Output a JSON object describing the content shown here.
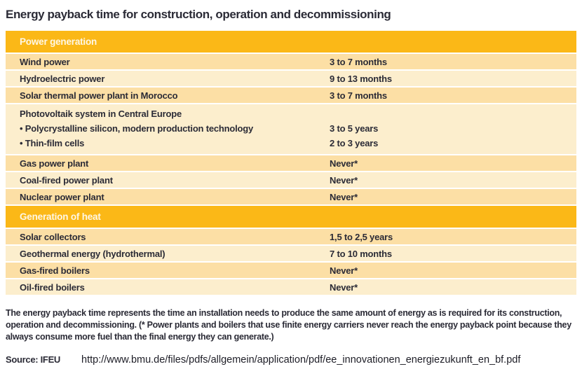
{
  "title": "Energy payback time for construction, operation and decommissioning",
  "colors": {
    "header_bg": "#FBB817",
    "row_dark": "#FCDFA5",
    "row_light": "#FCEECD",
    "separator": "#FFFBF0",
    "text_dark": "#2B2B36",
    "header_text": "#FEF7E6"
  },
  "table": {
    "sections": [
      {
        "header": "Power generation",
        "rows": [
          {
            "label": "Wind power",
            "value": "3 to 7 months"
          },
          {
            "label": "Hydroelectric power",
            "value": "9 to 13 months"
          },
          {
            "label": "Solar thermal power plant in Morocco",
            "value": "3 to 7 months"
          },
          {
            "label": "Photovoltaik system in Central Europe",
            "value": "",
            "sub": [
              {
                "label": "• Polycrystalline silicon, modern production technology",
                "value": "3 to 5 years"
              },
              {
                "label": "• Thin-film cells",
                "value": "2 to 3 years"
              }
            ]
          },
          {
            "label": "Gas power plant",
            "value": "Never*"
          },
          {
            "label": "Coal-fired power plant",
            "value": "Never*"
          },
          {
            "label": "Nuclear power plant",
            "value": "Never*"
          }
        ]
      },
      {
        "header": "Generation of heat",
        "rows": [
          {
            "label": "Solar collectors",
            "value": "1,5 to 2,5 years"
          },
          {
            "label": "Geothermal energy (hydrothermal)",
            "value": "7 to 10 months"
          },
          {
            "label": "Gas-fired boilers",
            "value": "Never*"
          },
          {
            "label": "Oil-fired boilers",
            "value": "Never*"
          }
        ]
      }
    ]
  },
  "footer": {
    "note": "The energy payback time represents the time an installation needs to produce the same amount of energy as is required for its construction, operation and decommissioning. (* Power plants and boilers that use finite energy carriers never reach the energy payback point because they always consume more fuel than the final energy they can generate.)",
    "source_label": "Source: IFEU",
    "url": "http://www.bmu.de/files/pdfs/allgemein/application/pdf/ee_innovationen_energiezukunft_en_bf.pdf"
  }
}
